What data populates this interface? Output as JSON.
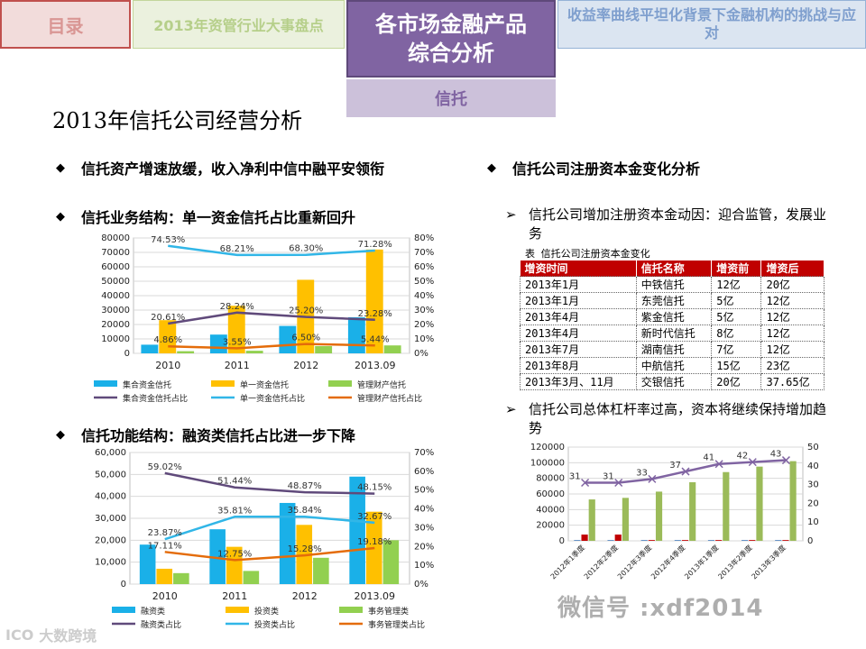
{
  "nav": {
    "tab1": "目录",
    "tab2": "2013年资管行业大事盘点",
    "tab3_line1": "各市场金融产品",
    "tab3_line2": "综合分析",
    "tab4": "收益率曲线平坦化背景下金融机构的挑战与应对",
    "subtab": "信托"
  },
  "page_title": "2013年信托公司经营分析",
  "bullets": {
    "b1": "信托资产增速放缓，收入净利中信中融平安领衔",
    "b2": "信托业务结构：单一资金信托占比重新回升",
    "b3": "信托功能结构：融资类信托占比进一步下降",
    "b4": "信托公司注册资本金变化分析"
  },
  "sub_bullets": {
    "s1": "信托公司增加注册资本金动因：迎合监管，发展业务",
    "s2": "信托公司总体杠杆率过高，资本将继续保持增加趋势"
  },
  "glyphs": {
    "diamond": "◆",
    "arrow": "➢"
  },
  "colors": {
    "blue": "#1ab0e8",
    "yellow": "#ffc000",
    "green": "#92d050",
    "purple": "#604a7b",
    "cyan": "#31b6e7",
    "orange": "#e46c0a",
    "red": "#c00000"
  },
  "table": {
    "caption": "表 信托公司注册资本金变化",
    "headers": [
      "增资时间",
      "信托名称",
      "增资前",
      "增资后"
    ],
    "rows": [
      [
        "2013年1月",
        "中铁信托",
        "12亿",
        "20亿"
      ],
      [
        "2013年1月",
        "东莞信托",
        "5亿",
        "12亿"
      ],
      [
        "2013年4月",
        "紫金信托",
        "5亿",
        "12亿"
      ],
      [
        "2013年4月",
        "新时代信托",
        "8亿",
        "12亿"
      ],
      [
        "2013年7月",
        "湖南信托",
        "7亿",
        "12亿"
      ],
      [
        "2013年8月",
        "中航信托",
        "15亿",
        "23亿"
      ],
      [
        "2013年3月、11月",
        "交银信托",
        "20亿",
        "37.65亿"
      ]
    ]
  },
  "watermarks": {
    "left_logo": "ICO",
    "left": "大数跨境",
    "right": "微信号 :xdf2014"
  },
  "chart_data": [
    {
      "type": "bar",
      "categories": [
        "2010",
        "2011",
        "2012",
        "2013.09"
      ],
      "ylim": [
        0,
        80000
      ],
      "y2lim": [
        0,
        0.8
      ],
      "yticks": [
        "0",
        "10000",
        "20000",
        "30000",
        "40000",
        "50000",
        "60000",
        "70000",
        "80000"
      ],
      "y2ticks": [
        "0%",
        "10%",
        "20%",
        "30%",
        "40%",
        "50%",
        "60%",
        "70%",
        "80%"
      ],
      "series": [
        {
          "name": "集合资金信托",
          "kind": "bar",
          "values": [
            6000,
            13000,
            19000,
            25000
          ]
        },
        {
          "name": "单一资金信托",
          "kind": "bar",
          "values": [
            23000,
            33000,
            51000,
            72000
          ]
        },
        {
          "name": "管理财产信托",
          "kind": "bar",
          "values": [
            1500,
            1800,
            5000,
            5500
          ]
        },
        {
          "name": "集合资金信托占比",
          "kind": "line",
          "values": [
            20.61,
            28.24,
            25.2,
            23.28
          ],
          "labels": [
            "20.61%",
            "28.24%",
            "25.20%",
            "23.28%"
          ]
        },
        {
          "name": "单一资金信托占比",
          "kind": "line",
          "values": [
            74.53,
            68.21,
            68.3,
            71.28
          ],
          "labels": [
            "74.53%",
            "68.21%",
            "68.30%",
            "71.28%"
          ]
        },
        {
          "name": "管理财产信托占比",
          "kind": "line",
          "values": [
            4.86,
            3.55,
            6.5,
            5.44
          ],
          "labels": [
            "4.86%",
            "3.55%",
            "6.50%",
            "5.44%"
          ]
        }
      ]
    },
    {
      "type": "bar",
      "categories": [
        "2010",
        "2011",
        "2012",
        "2013.09"
      ],
      "ylim": [
        0,
        60000
      ],
      "y2lim": [
        0,
        0.7
      ],
      "yticks": [
        "0",
        "10,000",
        "20,000",
        "30,000",
        "40,000",
        "50,000",
        "60,000"
      ],
      "y2ticks": [
        "0%",
        "10%",
        "20%",
        "30%",
        "40%",
        "50%",
        "60%",
        "70%"
      ],
      "series": [
        {
          "name": "融资类",
          "kind": "bar",
          "values": [
            18000,
            25000,
            37000,
            49000
          ]
        },
        {
          "name": "投资类",
          "kind": "bar",
          "values": [
            7000,
            17000,
            27000,
            33000
          ]
        },
        {
          "name": "事务管理类",
          "kind": "bar",
          "values": [
            5000,
            6000,
            12000,
            20000
          ]
        },
        {
          "name": "融资类占比",
          "kind": "line",
          "values": [
            59.02,
            51.44,
            48.87,
            48.15
          ],
          "labels": [
            "59.02%",
            "51.44%",
            "48.87%",
            "48.15%"
          ]
        },
        {
          "name": "投资类占比",
          "kind": "line",
          "values": [
            23.87,
            35.81,
            35.84,
            32.67
          ],
          "labels": [
            "23.87%",
            "35.81%",
            "35.84%",
            "32.67%"
          ]
        },
        {
          "name": "事务管理类占比",
          "kind": "line",
          "values": [
            17.11,
            12.75,
            15.28,
            19.18
          ],
          "labels": [
            "17.11%",
            "12.75%",
            "15.28%",
            "19.18%"
          ]
        }
      ]
    },
    {
      "type": "bar",
      "categories": [
        "2012年1季度",
        "2012年2季度",
        "2012年3季度",
        "2012年4季度",
        "2013年1季度",
        "2013年2季度",
        "2013年3季度"
      ],
      "ylim": [
        0,
        120000
      ],
      "y2lim": [
        0,
        50
      ],
      "yticks": [
        "0",
        "20000",
        "40000",
        "60000",
        "80000",
        "100000",
        "120000"
      ],
      "y2ticks": [
        "0",
        "10",
        "20",
        "30",
        "40",
        "50"
      ],
      "series": [
        {
          "kind": "bar",
          "values": [
            1000,
            1000,
            1000,
            1000,
            1000,
            1000,
            1000
          ]
        },
        {
          "kind": "bar",
          "values": [
            8000,
            8000,
            1000,
            1000,
            1000,
            1000,
            1000
          ]
        },
        {
          "kind": "bar",
          "values": [
            53000,
            55000,
            63000,
            75000,
            88000,
            95000,
            102000
          ]
        },
        {
          "kind": "line",
          "values": [
            31,
            31,
            33,
            37,
            41,
            42,
            43
          ],
          "labels": [
            "31",
            "31",
            "33",
            "37",
            "41",
            "42",
            "43"
          ]
        }
      ]
    }
  ]
}
